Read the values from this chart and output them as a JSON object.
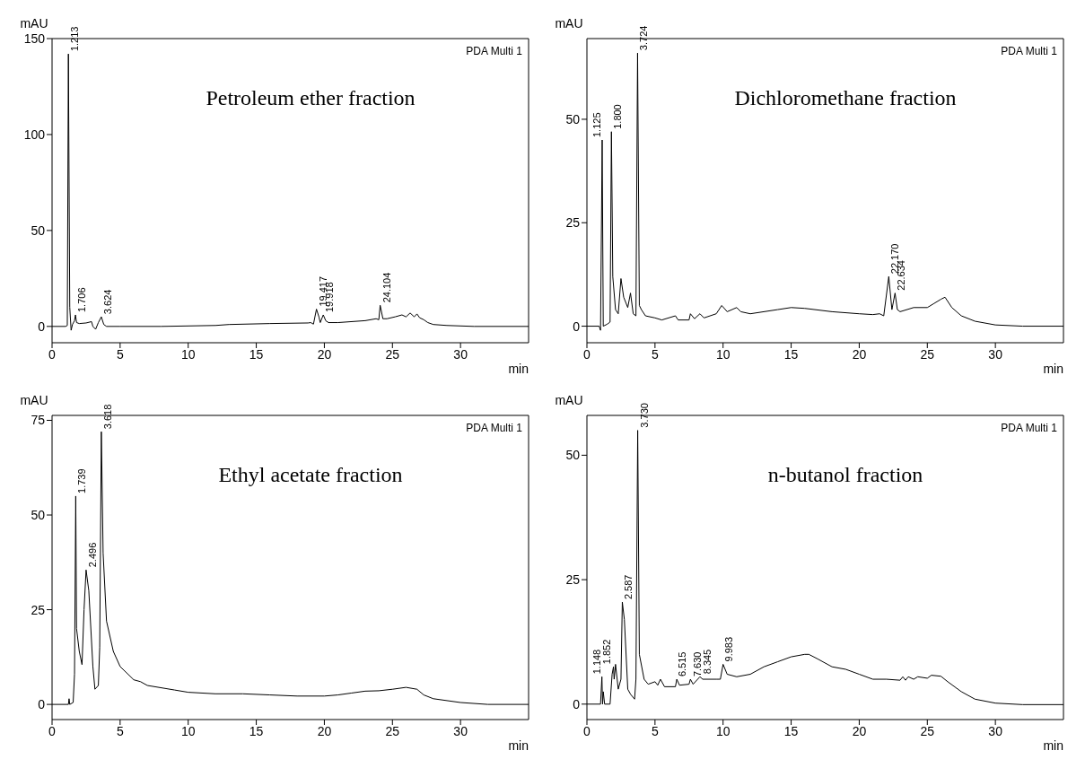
{
  "chart_data": [
    {
      "type": "line",
      "title": "Petroleum ether fraction",
      "xlabel": "min",
      "ylabel": "mAU",
      "xlim": [
        0,
        35
      ],
      "ylim": [
        -8.5,
        150
      ],
      "xticks": [
        0,
        5,
        10,
        15,
        20,
        25,
        30
      ],
      "yticks": [
        0,
        50,
        100,
        150
      ],
      "series": [
        {
          "color": "#000000",
          "x": [
            0,
            1.0,
            1.12,
            1.2,
            1.3,
            1.4,
            1.5,
            1.65,
            1.72,
            1.8,
            2.0,
            2.5,
            2.9,
            3.0,
            3.2,
            3.4,
            3.62,
            3.8,
            4.0,
            5,
            8,
            12,
            13,
            16,
            18.8,
            19.0,
            19.2,
            19.42,
            19.6,
            19.7,
            19.92,
            20.1,
            20.3,
            21,
            23,
            23.8,
            24.0,
            24.1,
            24.3,
            24.6,
            25.2,
            25.7,
            26.0,
            26.3,
            26.6,
            26.8,
            27.0,
            27.3,
            27.6,
            28,
            29,
            31,
            35
          ],
          "values": [
            0,
            0,
            0.5,
            142,
            10,
            -2,
            1,
            3,
            6,
            2,
            1.5,
            1.8,
            2.5,
            0,
            -1.5,
            2,
            5,
            1,
            0,
            0,
            0,
            0.5,
            1,
            1.5,
            1.8,
            2,
            1.2,
            9,
            5,
            2,
            6,
            3,
            2,
            2,
            3,
            4,
            3.5,
            11,
            4,
            4,
            5,
            6,
            5,
            7,
            5,
            6.5,
            4.5,
            3.5,
            2,
            1,
            0.5,
            0,
            0
          ]
        }
      ],
      "annotations": [
        "PDA Multi 1",
        {
          "text": "1.213",
          "x": 1.213,
          "y": 142
        },
        {
          "text": "1.706",
          "x": 1.706,
          "y": 6
        },
        {
          "text": "3.624",
          "x": 3.624,
          "y": 5
        },
        {
          "text": "19.417",
          "x": 19.417,
          "y": 9
        },
        {
          "text": "19.918",
          "x": 19.918,
          "y": 6
        },
        {
          "text": "24.104",
          "x": 24.104,
          "y": 11
        }
      ]
    },
    {
      "type": "line",
      "title": "Dichloromethane fraction",
      "xlabel": "min",
      "ylabel": "mAU",
      "xlim": [
        0,
        35
      ],
      "ylim": [
        -4,
        69.5
      ],
      "xticks": [
        0,
        5,
        10,
        15,
        20,
        25,
        30
      ],
      "yticks": [
        0,
        25,
        50
      ],
      "series": [
        {
          "color": "#000000",
          "x": [
            0,
            0.9,
            1.0,
            1.12,
            1.2,
            1.5,
            1.7,
            1.8,
            1.9,
            2.1,
            2.3,
            2.5,
            2.7,
            3.0,
            3.2,
            3.4,
            3.6,
            3.72,
            3.85,
            4.0,
            4.3,
            5,
            5.5,
            6,
            6.5,
            6.7,
            7.5,
            7.6,
            7.9,
            8.3,
            8.6,
            9.5,
            9.9,
            10.3,
            11.0,
            11.3,
            12,
            14,
            15,
            16,
            18,
            20,
            21,
            21.5,
            21.8,
            22.17,
            22.4,
            22.63,
            22.8,
            23,
            24,
            25,
            25.5,
            26,
            26.3,
            26.8,
            27.5,
            28.5,
            30,
            32,
            35
          ],
          "values": [
            0,
            0,
            -1,
            45,
            0,
            0.5,
            1,
            47,
            12,
            4,
            3,
            11.5,
            7,
            4.5,
            8,
            3,
            2.5,
            66,
            5,
            4,
            2.5,
            2,
            1.5,
            2,
            2.5,
            1.5,
            1.5,
            3,
            1.8,
            3,
            2,
            3,
            5,
            3.5,
            4.5,
            3.5,
            3,
            4,
            4.5,
            4.3,
            3.5,
            3,
            2.8,
            3,
            2.5,
            12,
            4,
            8,
            4,
            3.5,
            4.5,
            4.5,
            5.5,
            6.5,
            7,
            4.5,
            2.5,
            1.2,
            0.3,
            0,
            0
          ]
        }
      ],
      "annotations": [
        "PDA Multi 1",
        {
          "text": "1.125",
          "x": 1.125,
          "y": 45
        },
        {
          "text": "1.800",
          "x": 1.8,
          "y": 47
        },
        {
          "text": "3.724",
          "x": 3.724,
          "y": 66
        },
        {
          "text": "22.170",
          "x": 22.17,
          "y": 12
        },
        {
          "text": "22.634",
          "x": 22.634,
          "y": 8
        }
      ]
    },
    {
      "type": "line",
      "title": "Ethyl acetate fraction",
      "xlabel": "min",
      "ylabel": "mAU",
      "xlim": [
        0,
        35
      ],
      "ylim": [
        -4,
        76.3
      ],
      "xticks": [
        0,
        5,
        10,
        15,
        20,
        25,
        30
      ],
      "yticks": [
        0,
        25,
        50,
        75
      ],
      "series": [
        {
          "color": "#000000",
          "x": [
            0,
            1.2,
            1.25,
            1.3,
            1.55,
            1.65,
            1.74,
            1.8,
            2.0,
            2.2,
            2.35,
            2.5,
            2.7,
            3.0,
            3.15,
            3.4,
            3.5,
            3.62,
            3.75,
            4.0,
            4.5,
            5,
            6,
            6.5,
            7,
            9,
            10,
            12,
            14,
            16,
            18,
            20,
            21,
            22,
            23,
            24,
            25,
            26,
            26.8,
            27.3,
            28,
            30,
            32,
            35
          ],
          "values": [
            0,
            0,
            1.5,
            0,
            0.5,
            8,
            55,
            20,
            14,
            10.5,
            25,
            35.5,
            30,
            10,
            4,
            5,
            15,
            72,
            40,
            22,
            14,
            10,
            6.5,
            6,
            5,
            3.8,
            3.2,
            2.8,
            2.8,
            2.5,
            2.2,
            2.2,
            2.5,
            3,
            3.5,
            3.6,
            4,
            4.5,
            4,
            2.5,
            1.5,
            0.5,
            0,
            0
          ]
        }
      ],
      "annotations": [
        "PDA Multi 1",
        {
          "text": "1.739",
          "x": 1.739,
          "y": 55
        },
        {
          "text": "2.496",
          "x": 2.496,
          "y": 35.5
        },
        {
          "text": "3.618",
          "x": 3.618,
          "y": 72
        }
      ]
    },
    {
      "type": "line",
      "title": "n-butanol fraction",
      "xlabel": "min",
      "ylabel": "mAU",
      "xlim": [
        0,
        35
      ],
      "ylim": [
        -3.1,
        58
      ],
      "xticks": [
        0,
        5,
        10,
        15,
        20,
        25,
        30
      ],
      "yticks": [
        0,
        25,
        50
      ],
      "series": [
        {
          "color": "#000000",
          "x": [
            0,
            1.0,
            1.1,
            1.15,
            1.2,
            1.3,
            1.7,
            1.85,
            1.95,
            2.0,
            2.1,
            2.3,
            2.5,
            2.6,
            2.75,
            3.0,
            3.2,
            3.5,
            3.6,
            3.73,
            3.85,
            4.2,
            4.5,
            5,
            5.2,
            5.4,
            5.7,
            6.5,
            6.6,
            6.8,
            7.5,
            7.6,
            7.8,
            8.3,
            8.5,
            9.5,
            9.8,
            10.0,
            10.3,
            11,
            12,
            13,
            14,
            15,
            16,
            16.3,
            17,
            18,
            19,
            20,
            21,
            22,
            23,
            23.2,
            23.4,
            23.6,
            24,
            24.3,
            25,
            25.3,
            26,
            26.5,
            27.5,
            28.5,
            30,
            32,
            35
          ],
          "values": [
            0,
            0,
            5.5,
            0,
            2.5,
            0,
            0,
            6,
            7.5,
            5,
            8,
            3,
            5,
            20.5,
            17,
            3,
            2,
            1,
            5,
            55,
            10,
            5,
            4,
            4.5,
            3.8,
            5,
            3.5,
            3.5,
            5,
            3.8,
            4,
            5,
            4,
            5.5,
            5,
            5,
            5,
            8,
            6,
            5.5,
            6,
            7.5,
            8.5,
            9.5,
            10,
            10,
            9,
            7.5,
            7,
            6,
            5,
            5,
            4.8,
            5.5,
            4.8,
            5.5,
            5,
            5.5,
            5.2,
            5.8,
            5.6,
            4.5,
            2.5,
            1,
            0.2,
            -0.1,
            -0.1
          ]
        }
      ],
      "annotations": [
        "PDA Multi 1",
        {
          "text": "1.148",
          "x": 1.148,
          "y": 5.5
        },
        {
          "text": "1.852",
          "x": 1.852,
          "y": 7.5
        },
        {
          "text": "2.587",
          "x": 2.587,
          "y": 20.5
        },
        {
          "text": "3.730",
          "x": 3.73,
          "y": 55
        },
        {
          "text": "6.515",
          "x": 6.515,
          "y": 5
        },
        {
          "text": "7.630",
          "x": 7.63,
          "y": 5
        },
        {
          "text": "8.345",
          "x": 8.345,
          "y": 5.5
        },
        {
          "text": "9.983",
          "x": 9.983,
          "y": 8
        }
      ]
    }
  ]
}
